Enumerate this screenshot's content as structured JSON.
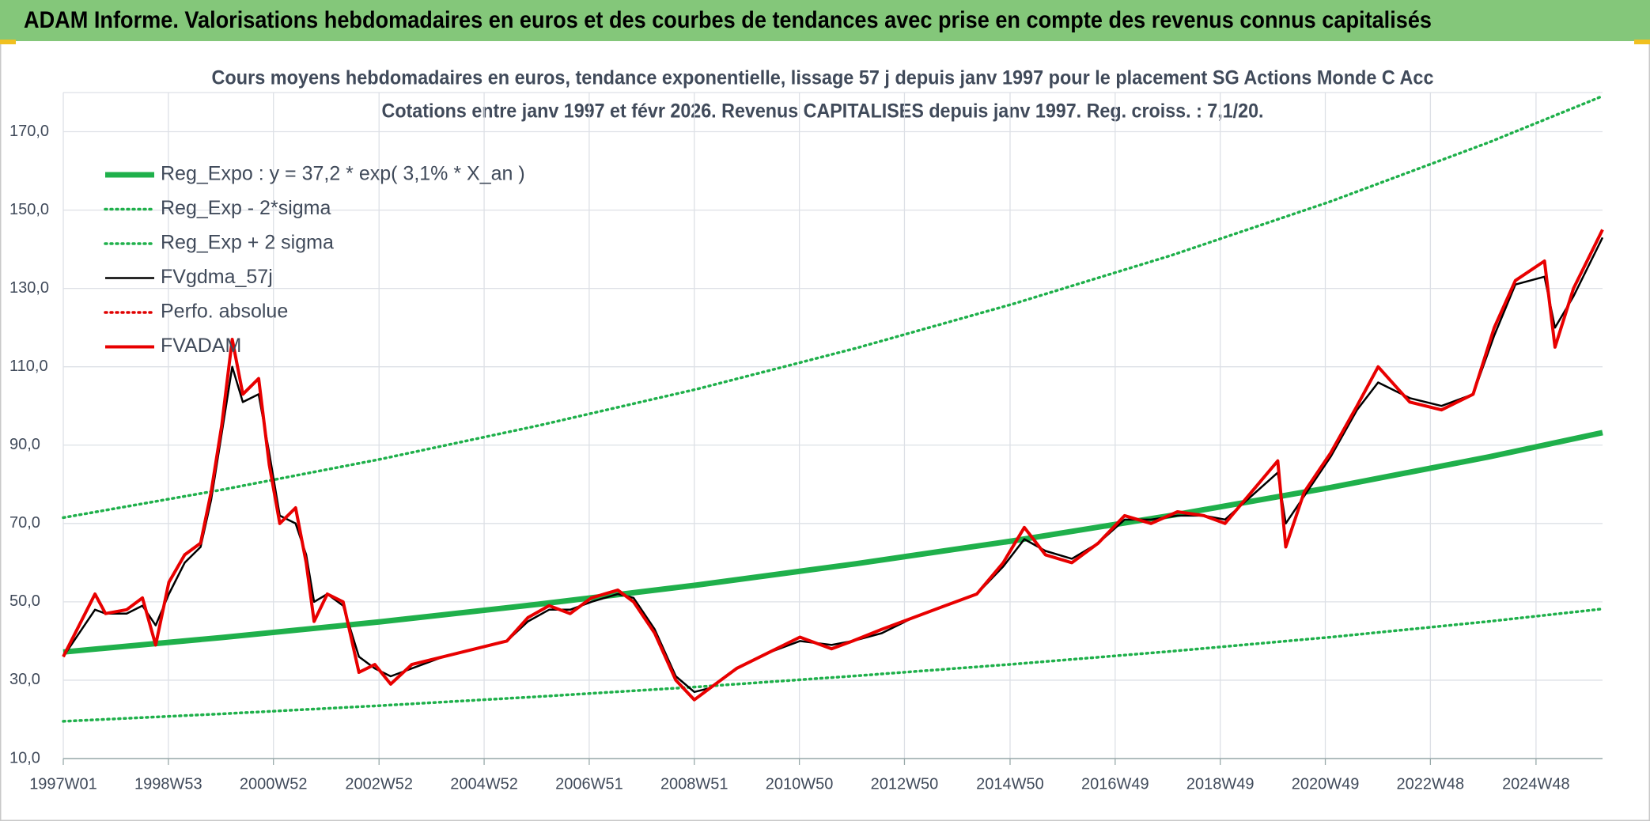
{
  "header": {
    "title": "ADAM Informe. Valorisations hebdomadaires en euros et des courbes de tendances avec prise en compte des revenus connus capitalisés"
  },
  "chart_data": {
    "type": "line",
    "title": "Cours moyens hebdomadaires en euros, tendance exponentielle, lissage 57 j depuis janv 1997 pour le placement SG Actions Monde C Acc",
    "subtitle": "Cotations entre janv 1997 et févr 2026. Revenus CAPITALISES depuis janv 1997. Reg. croiss. : 7,1/20.",
    "x": [
      1997.0,
      1997.6,
      1997.8,
      1998.2,
      1998.5,
      1998.75,
      1999.0,
      1999.3,
      1999.6,
      1999.8,
      2000.0,
      2000.2,
      2000.4,
      2000.7,
      2000.9,
      2001.1,
      2001.4,
      2001.6,
      2001.75,
      2002.0,
      2002.3,
      2002.6,
      2002.9,
      2003.2,
      2003.6,
      2004.2,
      2004.8,
      2005.4,
      2005.8,
      2006.2,
      2006.6,
      2007.0,
      2007.5,
      2007.8,
      2008.2,
      2008.6,
      2008.95,
      2009.25,
      2009.75,
      2010.35,
      2010.95,
      2011.55,
      2011.95,
      2012.5,
      2013.1,
      2013.7,
      2014.3,
      2014.8,
      2015.2,
      2015.6,
      2016.1,
      2016.6,
      2017.1,
      2017.6,
      2018.1,
      2018.6,
      2019.0,
      2019.5,
      2020.0,
      2020.15,
      2020.5,
      2021.0,
      2021.5,
      2021.9,
      2022.5,
      2023.1,
      2023.7,
      2024.1,
      2024.5,
      2025.05,
      2025.25,
      2025.6,
      2026.15
    ],
    "series": [
      {
        "name": "Reg_Expo : y = 37,2 * exp( 3,1% *  X_an )",
        "color": "#1fb04b",
        "style": "thick",
        "x": [
          1997,
          2000,
          2003,
          2006,
          2009,
          2012,
          2015,
          2018,
          2021,
          2024,
          2026.15
        ],
        "values": [
          37.2,
          40.9,
          44.9,
          49.4,
          54.3,
          59.7,
          65.6,
          72.1,
          79.2,
          87.0,
          93.2
        ]
      },
      {
        "name": "Reg_Exp - 2*sigma",
        "color": "#1fb04b",
        "style": "dotted",
        "x": [
          1997,
          2000,
          2003,
          2006,
          2009,
          2012,
          2015,
          2018,
          2021,
          2024,
          2026.15
        ],
        "values": [
          19.5,
          21.4,
          23.5,
          25.8,
          28.3,
          31.1,
          34.1,
          37.4,
          41.0,
          45.0,
          48.2
        ]
      },
      {
        "name": "Reg_Exp + 2 sigma",
        "color": "#1fb04b",
        "style": "dotted",
        "x": [
          1997,
          2000,
          2003,
          2006,
          2009,
          2012,
          2015,
          2018,
          2021,
          2024,
          2026.15
        ],
        "values": [
          71.5,
          78.6,
          86.4,
          95.0,
          104.3,
          114.7,
          126.1,
          138.5,
          152.2,
          167.3,
          179.1
        ]
      },
      {
        "name": "FVgdma_57j",
        "color": "#000000",
        "style": "solid",
        "values": [
          36,
          48,
          47,
          47,
          49,
          44,
          52,
          60,
          64,
          76,
          93,
          110,
          101,
          103,
          88,
          72,
          70,
          62,
          50,
          52,
          49,
          36,
          33,
          31,
          33,
          36,
          38,
          40,
          45,
          48,
          48,
          50,
          52,
          51,
          43,
          31,
          27,
          28,
          33,
          37,
          40,
          39,
          40,
          42,
          46,
          49,
          52,
          59,
          66,
          63,
          61,
          65,
          71,
          71,
          72,
          72,
          71,
          77,
          83,
          70,
          77,
          87,
          99,
          106,
          102,
          100,
          103,
          118,
          131,
          133,
          120,
          128,
          143
        ]
      },
      {
        "name": "Perfo. absolue",
        "color": "#e00000",
        "style": "dotted",
        "x": [
          1997,
          2026.15
        ],
        "values": [
          null,
          null
        ]
      },
      {
        "name": "FVADAM",
        "color": "#e80000",
        "style": "red",
        "values": [
          36,
          52,
          47,
          48,
          51,
          39,
          55,
          62,
          65,
          78,
          95,
          117,
          103,
          107,
          85,
          70,
          74,
          60,
          45,
          52,
          50,
          32,
          34,
          29,
          34,
          36,
          38,
          40,
          46,
          49,
          47,
          51,
          53,
          50,
          42,
          30,
          25,
          28,
          33,
          37,
          41,
          38,
          40,
          43,
          46,
          49,
          52,
          60,
          69,
          62,
          60,
          65,
          72,
          70,
          73,
          72,
          70,
          78,
          86,
          64,
          78,
          88,
          100,
          110,
          101,
          99,
          103,
          120,
          132,
          137,
          115,
          130,
          145
        ]
      }
    ],
    "xlim": [
      1997,
      2026.15
    ],
    "xticks": [
      {
        "value": 1997.0,
        "label": "1997W01"
      },
      {
        "value": 1998.99,
        "label": "1998W53"
      },
      {
        "value": 2000.98,
        "label": "2000W52"
      },
      {
        "value": 2002.98,
        "label": "2002W52"
      },
      {
        "value": 2004.97,
        "label": "2004W52"
      },
      {
        "value": 2006.96,
        "label": "2006W51"
      },
      {
        "value": 2008.95,
        "label": "2008W51"
      },
      {
        "value": 2010.94,
        "label": "2010W50"
      },
      {
        "value": 2012.93,
        "label": "2012W50"
      },
      {
        "value": 2014.93,
        "label": "2014W50"
      },
      {
        "value": 2016.92,
        "label": "2016W49"
      },
      {
        "value": 2018.91,
        "label": "2018W49"
      },
      {
        "value": 2020.9,
        "label": "2020W49"
      },
      {
        "value": 2022.89,
        "label": "2022W48"
      },
      {
        "value": 2024.89,
        "label": "2024W48"
      }
    ],
    "ylim": [
      10,
      180
    ],
    "yticks": [
      {
        "value": 10,
        "label": "10,0"
      },
      {
        "value": 30,
        "label": "30,0"
      },
      {
        "value": 50,
        "label": "50,0"
      },
      {
        "value": 70,
        "label": "70,0"
      },
      {
        "value": 90,
        "label": "90,0"
      },
      {
        "value": 110,
        "label": "110,0"
      },
      {
        "value": 130,
        "label": "130,0"
      },
      {
        "value": 150,
        "label": "150,0"
      },
      {
        "value": 170,
        "label": "170,0"
      }
    ],
    "grid": true,
    "legend": "top-left"
  }
}
